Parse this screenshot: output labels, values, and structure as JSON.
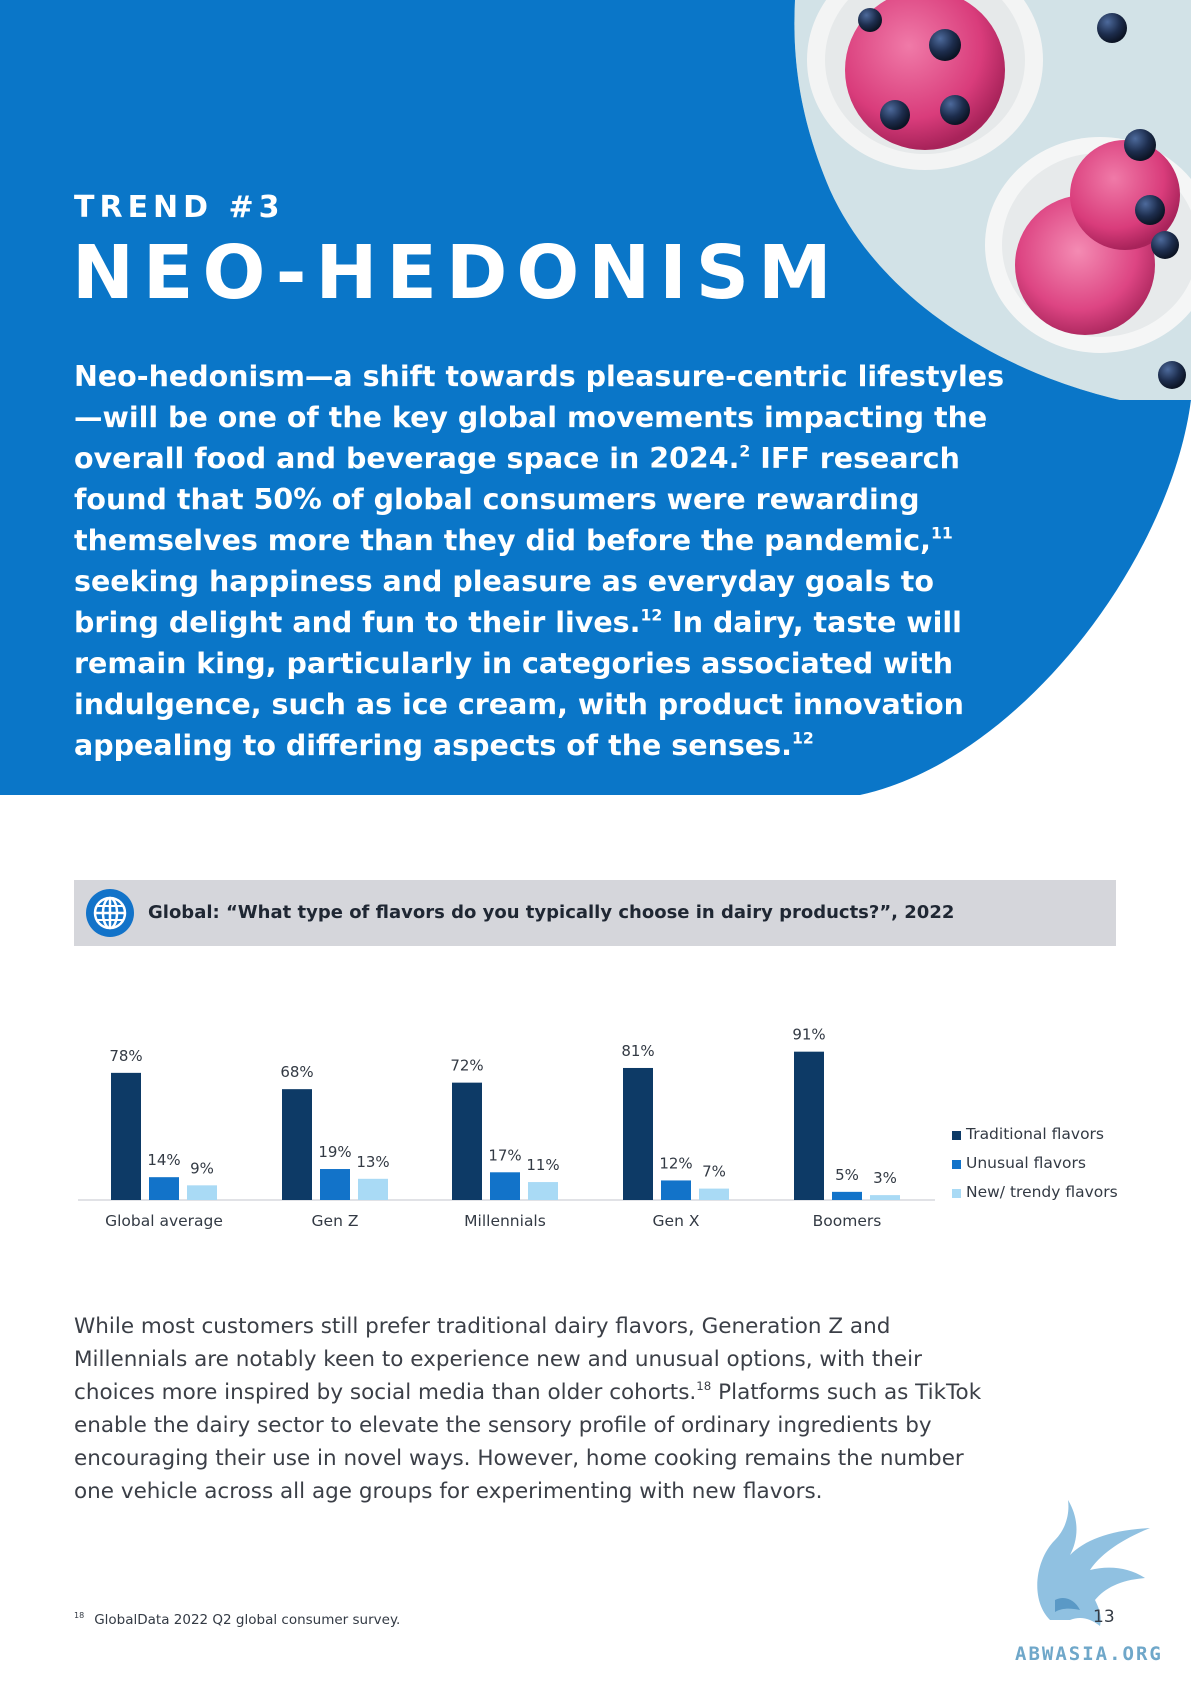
{
  "hero": {
    "trend_label": "TREND #3",
    "title": "NEO-HEDONISM",
    "paragraph": [
      {
        "text": "Neo-hedonism—a shift towards pleasure-centric lifestyles—will be one of the key global movements impacting the overall food and beverage space in 2024."
      },
      {
        "sup": "2"
      },
      {
        "text": " IFF research found that 50% of global consumers were rewarding themselves more than they did before the pandemic,"
      },
      {
        "sup": "11"
      },
      {
        "text": " seeking happiness and pleasure as everyday goals to bring delight and fun to their lives."
      },
      {
        "sup": "12"
      },
      {
        "text": " In dairy, taste will remain king, particularly in categories associated with indulgence, such as ice cream, with product innovation appealing to differing aspects of the senses."
      },
      {
        "sup": "12"
      }
    ]
  },
  "chart_header": {
    "icon": "globe-icon",
    "title": "Global: “What type of flavors do you typically choose in dairy products?”, 2022"
  },
  "chart_data": {
    "type": "bar",
    "title": "Global: “What type of flavors do you typically choose in dairy products?”, 2022",
    "categories": [
      "Global average",
      "Gen Z",
      "Millennials",
      "Gen X",
      "Boomers"
    ],
    "series": [
      {
        "name": "Traditional flavors",
        "values": [
          78,
          68,
          72,
          81,
          91
        ],
        "color": "#0d3a66"
      },
      {
        "name": "Unusual flavors",
        "values": [
          14,
          19,
          17,
          12,
          5
        ],
        "color": "#1273c9"
      },
      {
        "name": "New/ trendy flavors",
        "values": [
          9,
          13,
          11,
          7,
          3
        ],
        "color": "#a9daf5"
      }
    ],
    "value_suffix": "%",
    "ylim": [
      0,
      100
    ],
    "grid": false,
    "legend_position": "right"
  },
  "body": [
    {
      "text": "While most customers still prefer traditional dairy flavors, Generation Z and Millennials are notably keen to experience new and unusual options, with their choices more inspired by social media than older cohorts."
    },
    {
      "sup": "18"
    },
    {
      "text": " Platforms such as TikTok enable the dairy sector to elevate the sensory profile of ordinary ingredients by encouraging their use in novel ways. However, home cooking remains the number one vehicle across all age groups for experimenting with new flavors."
    }
  ],
  "footnote": {
    "marker": "18",
    "text": "GlobalData 2022 Q2 global consumer survey."
  },
  "page_number": "13",
  "watermark": {
    "text": "ABWASIA.ORG",
    "icon": "griffin-logo-icon"
  },
  "colors": {
    "hero_blue": "#0a76c8",
    "photo_bg": "#c8dce3",
    "header_grey": "#d5d6db",
    "traditional": "#0d3a66",
    "unusual": "#1273c9",
    "trendy": "#a9daf5"
  }
}
